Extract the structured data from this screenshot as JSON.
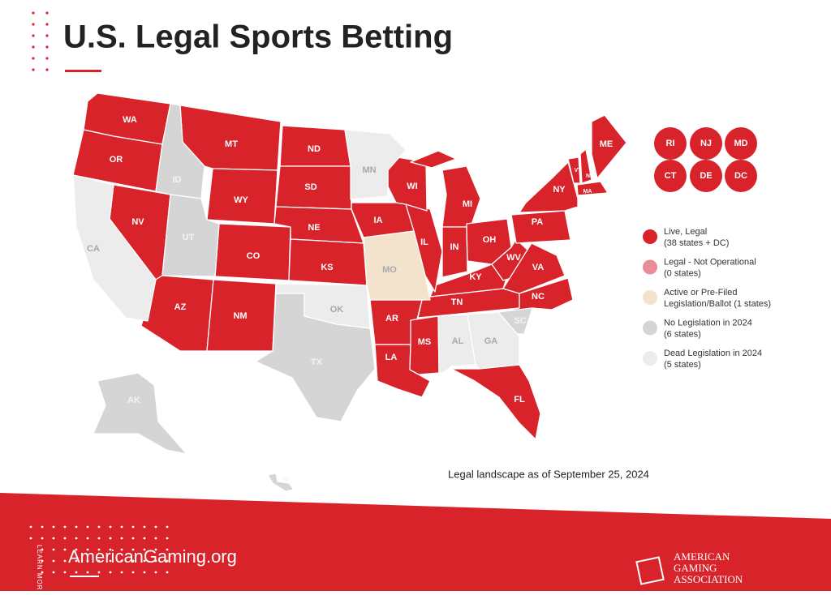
{
  "header": {
    "title": "U.S. Legal Sports Betting"
  },
  "map": {
    "categories": [
      {
        "label": "Live, Legal",
        "count": "(38 states + DC)",
        "color": "#d9232a",
        "states": [
          "WA",
          "OR",
          "NV",
          "AZ",
          "MT",
          "WY",
          "CO",
          "NM",
          "ND",
          "SD",
          "NE",
          "KS",
          "IA",
          "AR",
          "LA",
          "MS",
          "TN",
          "KY",
          "IL",
          "WI",
          "MI",
          "IN",
          "OH",
          "WV",
          "VA",
          "NC",
          "PA",
          "NY",
          "VT",
          "NH",
          "ME",
          "MA",
          "FL",
          "RI",
          "NJ",
          "MD",
          "CT",
          "DE",
          "DC"
        ]
      },
      {
        "label": "Legal - Not Operational",
        "count": "(0 states)",
        "color": "#e98e99",
        "states": []
      },
      {
        "label": "Active or Pre-Filed",
        "count": "Legislation/Ballot (1 states)",
        "color": "#f3e3cd",
        "states": [
          "MO"
        ]
      },
      {
        "label": "No Legislation in 2024",
        "count": "(6 states)",
        "color": "#d5d5d5",
        "states": [
          "ID",
          "UT",
          "TX",
          "SC",
          "AK",
          "HI"
        ]
      },
      {
        "label": "Dead Legislation in 2024",
        "count": "(5 states)",
        "color": "#ececec",
        "states": [
          "CA",
          "MN",
          "OK",
          "AL",
          "GA"
        ]
      }
    ],
    "note": "Legal landscape as of September 25, 2024"
  },
  "footer": {
    "link": "AmericanGaming.org",
    "learn_more": "LEARN MORE",
    "logo": [
      "AMERICAN",
      "GAMING",
      "ASSOCIATION"
    ]
  }
}
